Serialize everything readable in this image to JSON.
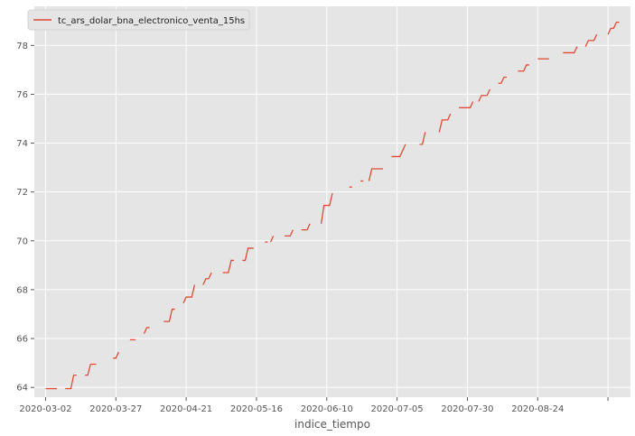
{
  "chart_data": {
    "type": "line",
    "xlabel": "indice_tiempo",
    "ylabel": "",
    "legend_position": "top-left",
    "grid": true,
    "x_ticks": [
      "2020-03-02",
      "2020-03-27",
      "2020-04-21",
      "2020-05-16",
      "2020-06-10",
      "2020-07-05",
      "2020-07-30",
      "2020-08-24",
      ""
    ],
    "y_ticks": [
      64,
      66,
      68,
      70,
      72,
      74,
      76,
      78
    ],
    "xlim": [
      "2020-02-27",
      "2020-09-26"
    ],
    "ylim": [
      63.6,
      79.6
    ],
    "colors": {
      "line": "#E24A33",
      "plot_bg": "#E5E5E5",
      "grid": "#FFFFFF"
    },
    "series": [
      {
        "name": "tc_ars_dolar_bna_electronico_venta_15hs",
        "segments": [
          [
            [
              "2020-03-02",
              63.95
            ],
            [
              "2020-03-06",
              63.95
            ]
          ],
          [
            [
              "2020-03-09",
              63.95
            ],
            [
              "2020-03-11",
              63.95
            ],
            [
              "2020-03-12",
              64.5
            ],
            [
              "2020-03-13",
              64.5
            ]
          ],
          [
            [
              "2020-03-16",
              64.5
            ],
            [
              "2020-03-17",
              64.5
            ],
            [
              "2020-03-18",
              64.95
            ],
            [
              "2020-03-20",
              64.95
            ]
          ],
          [
            [
              "2020-03-26",
              65.2
            ],
            [
              "2020-03-27",
              65.2
            ],
            [
              "2020-03-28",
              65.45
            ]
          ],
          [
            [
              "2020-04-01",
              65.95
            ],
            [
              "2020-04-03",
              65.95
            ]
          ],
          [
            [
              "2020-04-06",
              66.2
            ],
            [
              "2020-04-07",
              66.45
            ],
            [
              "2020-04-08",
              66.45
            ]
          ],
          [
            [
              "2020-04-13",
              66.7
            ],
            [
              "2020-04-15",
              66.7
            ],
            [
              "2020-04-16",
              67.2
            ],
            [
              "2020-04-17",
              67.2
            ]
          ],
          [
            [
              "2020-04-20",
              67.45
            ],
            [
              "2020-04-21",
              67.7
            ],
            [
              "2020-04-23",
              67.7
            ],
            [
              "2020-04-24",
              68.2
            ]
          ],
          [
            [
              "2020-04-27",
              68.2
            ],
            [
              "2020-04-28",
              68.45
            ],
            [
              "2020-04-29",
              68.45
            ],
            [
              "2020-04-30",
              68.7
            ]
          ],
          [
            [
              "2020-05-04",
              68.7
            ],
            [
              "2020-05-06",
              68.7
            ],
            [
              "2020-05-07",
              69.2
            ],
            [
              "2020-05-08",
              69.2
            ]
          ],
          [
            [
              "2020-05-11",
              69.2
            ],
            [
              "2020-05-12",
              69.2
            ],
            [
              "2020-05-13",
              69.7
            ],
            [
              "2020-05-15",
              69.7
            ]
          ],
          [
            [
              "2020-05-19",
              69.95
            ],
            [
              "2020-05-20",
              69.95
            ]
          ],
          [
            [
              "2020-05-21",
              69.95
            ],
            [
              "2020-05-22",
              70.2
            ]
          ],
          [
            [
              "2020-05-26",
              70.2
            ],
            [
              "2020-05-28",
              70.2
            ],
            [
              "2020-05-29",
              70.45
            ]
          ],
          [
            [
              "2020-06-01",
              70.45
            ],
            [
              "2020-06-03",
              70.45
            ],
            [
              "2020-06-04",
              70.7
            ]
          ],
          [
            [
              "2020-06-08",
              70.7
            ],
            [
              "2020-06-09",
              71.45
            ],
            [
              "2020-06-11",
              71.45
            ],
            [
              "2020-06-12",
              71.95
            ]
          ],
          [
            [
              "2020-06-18",
              72.2
            ],
            [
              "2020-06-19",
              72.2
            ]
          ],
          [
            [
              "2020-06-22",
              72.45
            ],
            [
              "2020-06-23",
              72.45
            ]
          ],
          [
            [
              "2020-06-25",
              72.45
            ],
            [
              "2020-06-26",
              72.95
            ],
            [
              "2020-06-30",
              72.95
            ]
          ],
          [
            [
              "2020-07-03",
              73.45
            ],
            [
              "2020-07-06",
              73.45
            ],
            [
              "2020-07-08",
              73.95
            ]
          ],
          [
            [
              "2020-07-13",
              73.95
            ],
            [
              "2020-07-14",
              73.95
            ],
            [
              "2020-07-15",
              74.45
            ]
          ],
          [
            [
              "2020-07-20",
              74.45
            ],
            [
              "2020-07-21",
              74.95
            ],
            [
              "2020-07-23",
              74.95
            ],
            [
              "2020-07-24",
              75.2
            ]
          ],
          [
            [
              "2020-07-27",
              75.45
            ],
            [
              "2020-07-31",
              75.45
            ],
            [
              "2020-08-01",
              75.7
            ]
          ],
          [
            [
              "2020-08-03",
              75.7
            ],
            [
              "2020-08-04",
              75.95
            ],
            [
              "2020-08-06",
              75.95
            ],
            [
              "2020-08-07",
              76.2
            ]
          ],
          [
            [
              "2020-08-10",
              76.45
            ],
            [
              "2020-08-11",
              76.45
            ],
            [
              "2020-08-12",
              76.7
            ],
            [
              "2020-08-13",
              76.7
            ]
          ],
          [
            [
              "2020-08-17",
              76.95
            ],
            [
              "2020-08-19",
              76.95
            ],
            [
              "2020-08-20",
              77.2
            ],
            [
              "2020-08-21",
              77.2
            ]
          ],
          [
            [
              "2020-08-24",
              77.45
            ],
            [
              "2020-08-28",
              77.45
            ]
          ],
          [
            [
              "2020-09-02",
              77.7
            ],
            [
              "2020-09-06",
              77.7
            ],
            [
              "2020-09-07",
              77.95
            ]
          ],
          [
            [
              "2020-09-10",
              77.95
            ],
            [
              "2020-09-11",
              78.2
            ],
            [
              "2020-09-13",
              78.2
            ],
            [
              "2020-09-14",
              78.45
            ]
          ],
          [
            [
              "2020-09-18",
              78.45
            ],
            [
              "2020-09-19",
              78.7
            ],
            [
              "2020-09-20",
              78.7
            ],
            [
              "2020-09-21",
              78.95
            ],
            [
              "2020-09-22",
              78.95
            ]
          ]
        ]
      }
    ]
  }
}
